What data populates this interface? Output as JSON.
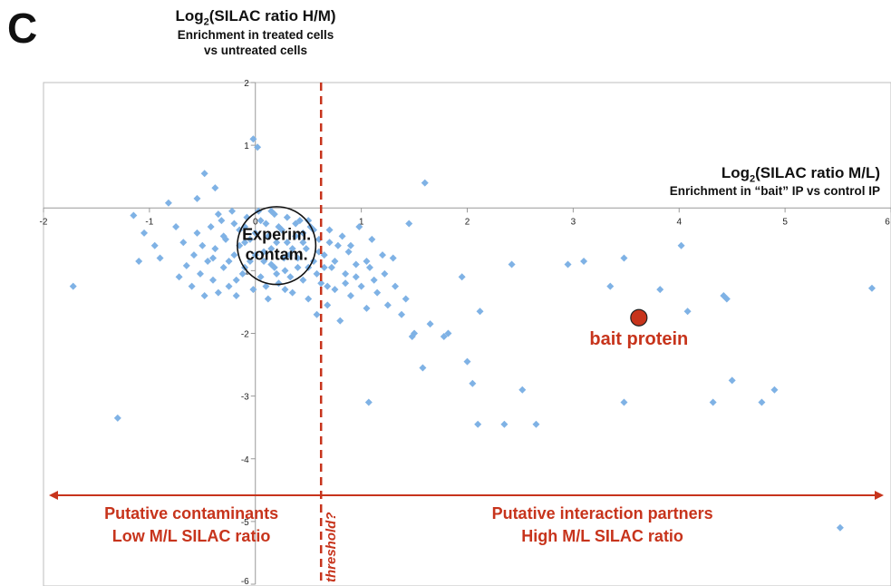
{
  "panel_label": "C",
  "y_title": {
    "prefix": "Log",
    "subscript": "2",
    "rest": "(SILAC ratio H/M)",
    "line1": "Enrichment in treated cells",
    "line2": "vs untreated cells"
  },
  "x_title": {
    "prefix": "Log",
    "subscript": "2",
    "rest": "(SILAC ratio M/L)",
    "line1": "Enrichment in “bait” IP vs control IP"
  },
  "annotations": {
    "cluster_label_1": "Experim.",
    "cluster_label_2": "contam.",
    "bait_label": "bait protein",
    "threshold_label": "threshold?",
    "left_region_1": "Putative contaminants",
    "left_region_2": "Low M/L SILAC ratio",
    "right_region_1": "Putative interaction partners",
    "right_region_2": "High M/L SILAC ratio"
  },
  "colors": {
    "points": "#7fb2e5",
    "accent": "#c7341c",
    "bait_fill": "#c7341c",
    "axis": "#999999",
    "text": "#111111"
  },
  "chart_data": {
    "type": "scatter",
    "xlim": [
      -2,
      6
    ],
    "ylim": [
      -6,
      2
    ],
    "x_ticks": [
      -2,
      -1,
      0,
      1,
      2,
      3,
      4,
      5,
      6
    ],
    "y_ticks": [
      2,
      1,
      -1,
      -2,
      -3,
      -4,
      -5,
      -6
    ],
    "threshold_x": 0.62,
    "bait": {
      "x": 3.62,
      "y": -1.75
    },
    "cluster_ellipse": {
      "cx": 0.2,
      "cy": -0.6,
      "rx": 0.37,
      "ry": 0.62
    },
    "points": [
      [
        -0.02,
        1.1
      ],
      [
        0.02,
        0.97
      ],
      [
        -0.48,
        0.55
      ],
      [
        -0.38,
        0.32
      ],
      [
        -0.82,
        0.08
      ],
      [
        -0.55,
        0.15
      ],
      [
        -1.15,
        -0.12
      ],
      [
        -1.3,
        -3.35
      ],
      [
        -1.72,
        -1.25
      ],
      [
        -1.1,
        -0.85
      ],
      [
        -1.05,
        -0.4
      ],
      [
        -0.95,
        -0.6
      ],
      [
        -0.9,
        -0.8
      ],
      [
        -0.75,
        -0.3
      ],
      [
        -0.72,
        -1.1
      ],
      [
        -0.68,
        -0.55
      ],
      [
        -0.65,
        -0.92
      ],
      [
        -0.6,
        -1.25
      ],
      [
        -0.58,
        -0.75
      ],
      [
        -0.55,
        -0.4
      ],
      [
        -0.52,
        -1.05
      ],
      [
        -0.5,
        -0.6
      ],
      [
        -0.48,
        -1.4
      ],
      [
        -0.45,
        -0.85
      ],
      [
        -0.42,
        -0.3
      ],
      [
        -0.4,
        -1.15
      ],
      [
        -0.38,
        -0.65
      ],
      [
        -0.35,
        -1.35
      ],
      [
        -0.32,
        -0.2
      ],
      [
        -0.3,
        -0.95
      ],
      [
        -0.28,
        -0.5
      ],
      [
        -0.25,
        -1.25
      ],
      [
        -0.22,
        -0.05
      ],
      [
        -0.2,
        -0.75
      ],
      [
        -0.18,
        -1.4
      ],
      [
        -0.15,
        -0.35
      ],
      [
        -0.12,
        -1.05
      ],
      [
        -0.1,
        -0.55
      ],
      [
        -0.08,
        -0.15
      ],
      [
        -0.05,
        -0.85
      ],
      [
        -0.02,
        -1.3
      ],
      [
        0.0,
        -0.4
      ],
      [
        0.03,
        -0.05
      ],
      [
        0.05,
        -1.1
      ],
      [
        0.08,
        -0.7
      ],
      [
        0.1,
        -0.25
      ],
      [
        0.12,
        -1.45
      ],
      [
        0.15,
        -0.9
      ],
      [
        0.18,
        -0.1
      ],
      [
        0.2,
        -0.55
      ],
      [
        0.22,
        -1.2
      ],
      [
        0.25,
        -0.35
      ],
      [
        0.28,
        -1.0
      ],
      [
        0.3,
        -0.15
      ],
      [
        0.32,
        -0.75
      ],
      [
        0.35,
        -1.35
      ],
      [
        0.38,
        -0.45
      ],
      [
        0.4,
        -0.95
      ],
      [
        0.42,
        -0.2
      ],
      [
        0.45,
        -1.15
      ],
      [
        0.48,
        -0.65
      ],
      [
        0.5,
        -1.45
      ],
      [
        0.52,
        -0.3
      ],
      [
        0.55,
        -0.85
      ],
      [
        0.58,
        -1.7
      ],
      [
        0.6,
        -0.5
      ],
      [
        0.62,
        -1.2
      ],
      [
        0.65,
        -0.75
      ],
      [
        0.68,
        -1.55
      ],
      [
        0.7,
        -0.35
      ],
      [
        0.72,
        -0.95
      ],
      [
        0.75,
        -1.3
      ],
      [
        0.78,
        -0.6
      ],
      [
        0.8,
        -1.8
      ],
      [
        0.82,
        -0.45
      ],
      [
        0.85,
        -1.05
      ],
      [
        0.88,
        -0.7
      ],
      [
        0.9,
        -1.4
      ],
      [
        0.95,
        -0.9
      ],
      [
        0.98,
        -0.3
      ],
      [
        1.0,
        -1.25
      ],
      [
        1.05,
        -1.6
      ],
      [
        1.08,
        -0.95
      ],
      [
        1.1,
        -0.5
      ],
      [
        1.12,
        -1.15
      ],
      [
        1.15,
        -1.35
      ],
      [
        1.2,
        -0.75
      ],
      [
        1.22,
        -1.05
      ],
      [
        1.25,
        -1.55
      ],
      [
        1.3,
        -0.8
      ],
      [
        1.32,
        -1.25
      ],
      [
        1.38,
        -1.7
      ],
      [
        1.42,
        -1.45
      ],
      [
        1.48,
        -2.05
      ],
      [
        1.5,
        -2.0
      ],
      [
        1.45,
        -0.25
      ],
      [
        1.6,
        0.4
      ],
      [
        1.58,
        -2.55
      ],
      [
        1.65,
        -1.85
      ],
      [
        1.78,
        -2.05
      ],
      [
        1.82,
        -2.0
      ],
      [
        1.95,
        -1.1
      ],
      [
        2.0,
        -2.45
      ],
      [
        2.05,
        -2.8
      ],
      [
        2.1,
        -3.45
      ],
      [
        2.12,
        -1.65
      ],
      [
        2.35,
        -3.45
      ],
      [
        2.42,
        -0.9
      ],
      [
        2.52,
        -2.9
      ],
      [
        2.65,
        -3.45
      ],
      [
        1.07,
        -3.1
      ],
      [
        2.95,
        -0.9
      ],
      [
        3.1,
        -0.85
      ],
      [
        3.35,
        -1.25
      ],
      [
        3.48,
        -0.8
      ],
      [
        3.48,
        -3.1
      ],
      [
        3.82,
        -1.3
      ],
      [
        4.02,
        -0.6
      ],
      [
        4.08,
        -1.65
      ],
      [
        4.32,
        -3.1
      ],
      [
        4.42,
        -1.4
      ],
      [
        4.45,
        -1.45
      ],
      [
        4.5,
        -2.75
      ],
      [
        4.78,
        -3.1
      ],
      [
        4.9,
        -2.9
      ],
      [
        5.52,
        -5.1
      ],
      [
        5.82,
        -1.28
      ],
      [
        -0.35,
        -0.1
      ],
      [
        -0.2,
        -0.25
      ],
      [
        -0.1,
        -0.3
      ],
      [
        0.05,
        -0.2
      ],
      [
        0.12,
        -0.45
      ],
      [
        0.22,
        -0.3
      ],
      [
        0.3,
        -0.55
      ],
      [
        0.38,
        -0.25
      ],
      [
        0.45,
        -0.4
      ],
      [
        -0.15,
        -0.6
      ],
      [
        -0.05,
        -0.5
      ],
      [
        0.15,
        -0.65
      ],
      [
        0.27,
        -0.8
      ],
      [
        0.35,
        -0.65
      ],
      [
        -0.25,
        -0.85
      ],
      [
        -0.1,
        -0.95
      ],
      [
        0.08,
        -0.85
      ],
      [
        0.18,
        -0.95
      ],
      [
        0.4,
        -0.8
      ],
      [
        0.5,
        -0.95
      ],
      [
        -0.3,
        -0.45
      ],
      [
        0.0,
        -0.75
      ],
      [
        0.2,
        -1.05
      ],
      [
        0.33,
        -1.1
      ],
      [
        -0.18,
        -1.15
      ],
      [
        0.1,
        -1.25
      ],
      [
        0.28,
        -1.3
      ],
      [
        0.45,
        -0.55
      ],
      [
        0.55,
        -0.35
      ],
      [
        0.6,
        -0.7
      ],
      [
        -0.4,
        -0.8
      ],
      [
        0.65,
        -0.95
      ],
      [
        0.7,
        -0.55
      ],
      [
        0.75,
        -0.85
      ],
      [
        0.85,
        -1.2
      ],
      [
        0.9,
        -0.6
      ],
      [
        0.95,
        -1.1
      ],
      [
        1.05,
        -0.85
      ],
      [
        0.58,
        -1.05
      ],
      [
        0.68,
        -1.25
      ],
      [
        0.5,
        -0.2
      ],
      [
        0.15,
        -0.05
      ]
    ]
  }
}
